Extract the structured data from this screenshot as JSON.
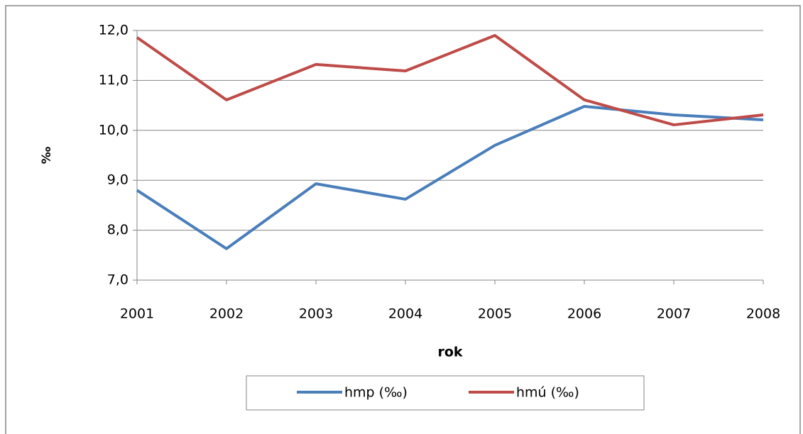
{
  "chart_data": {
    "type": "line",
    "y_label": "‰",
    "x_label": "rok",
    "categories": [
      "2001",
      "2002",
      "2003",
      "2004",
      "2005",
      "2006",
      "2007",
      "2008"
    ],
    "series": [
      {
        "name": "hmp (‰)",
        "color": "#4a7ebb",
        "values": [
          8.8,
          7.63,
          8.93,
          8.62,
          9.7,
          10.48,
          10.31,
          10.21
        ]
      },
      {
        "name": "hmú (‰)",
        "color": "#be4b48",
        "values": [
          11.86,
          10.61,
          11.32,
          11.19,
          11.9,
          10.61,
          10.11,
          10.31
        ]
      }
    ],
    "ylim": [
      7,
      12
    ],
    "yticks": [
      {
        "value": 7,
        "label": "7,0"
      },
      {
        "value": 8,
        "label": "8,0"
      },
      {
        "value": 9,
        "label": "9,0"
      },
      {
        "value": 10,
        "label": "10,0"
      },
      {
        "value": 11,
        "label": "11,0"
      },
      {
        "value": 12,
        "label": "12,0"
      }
    ],
    "grid": true
  }
}
